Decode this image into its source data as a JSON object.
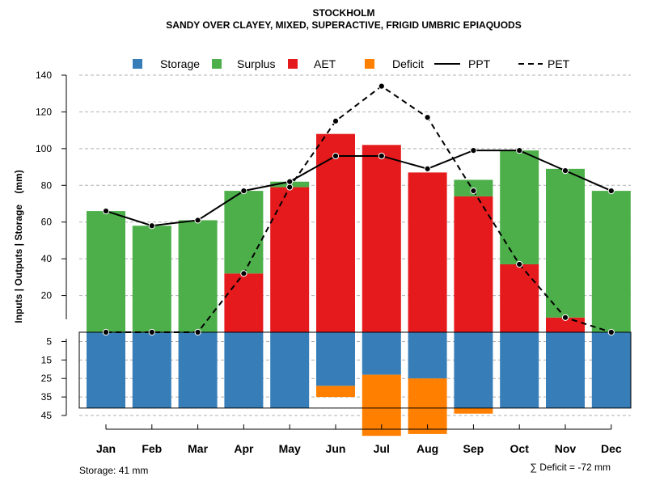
{
  "chart_data": {
    "type": "bar",
    "title": "STOCKHOLM",
    "subtitle": "SANDY OVER CLAYEY, MIXED, SUPERACTIVE, FRIGID UMBRIC EPIAQUODS",
    "ylabel": "Inputs | Outputs | Storage    (mm)",
    "categories": [
      "Jan",
      "Feb",
      "Mar",
      "Apr",
      "May",
      "Jun",
      "Jul",
      "Aug",
      "Sep",
      "Oct",
      "Nov",
      "Dec"
    ],
    "ylim_upper": [
      0,
      140
    ],
    "yticks_upper": [
      20,
      40,
      60,
      80,
      100,
      120,
      140
    ],
    "ylim_lower": [
      0,
      45
    ],
    "yticks_lower": [
      5,
      15,
      25,
      35,
      45
    ],
    "storage_capacity": 41,
    "series": [
      {
        "name": "Storage",
        "color": "#377EB8",
        "values": [
          41,
          41,
          41,
          41,
          41,
          29,
          23,
          25,
          41,
          41,
          41,
          41
        ]
      },
      {
        "name": "Surplus",
        "color": "#4DAF4A",
        "values": [
          66,
          58,
          61,
          45,
          3,
          0,
          0,
          0,
          9,
          62,
          81,
          77
        ]
      },
      {
        "name": "AET",
        "color": "#E41A1C",
        "values": [
          0,
          0,
          0,
          32,
          79,
          108,
          102,
          87,
          74,
          37,
          8,
          0
        ]
      },
      {
        "name": "Deficit",
        "color": "#FF7F00",
        "values": [
          0,
          0,
          0,
          0,
          0,
          6,
          33,
          30,
          3,
          0,
          0,
          0
        ]
      },
      {
        "name": "PPT",
        "color": "#000000",
        "line": "solid",
        "values": [
          66,
          58,
          61,
          77,
          82,
          96,
          96,
          89,
          99,
          99,
          88,
          77
        ]
      },
      {
        "name": "PET",
        "color": "#000000",
        "line": "dashed",
        "values": [
          0,
          0,
          0,
          32,
          79,
          115,
          134,
          117,
          77,
          37,
          8,
          0
        ]
      }
    ],
    "legend": [
      "Storage",
      "Surplus",
      "AET",
      "Deficit",
      "PPT",
      "PET"
    ],
    "legend_position": "top",
    "grid": true
  },
  "footer": {
    "storage_label": "Storage: 41 mm",
    "deficit_label": "∑ Deficit = -72 mm"
  }
}
